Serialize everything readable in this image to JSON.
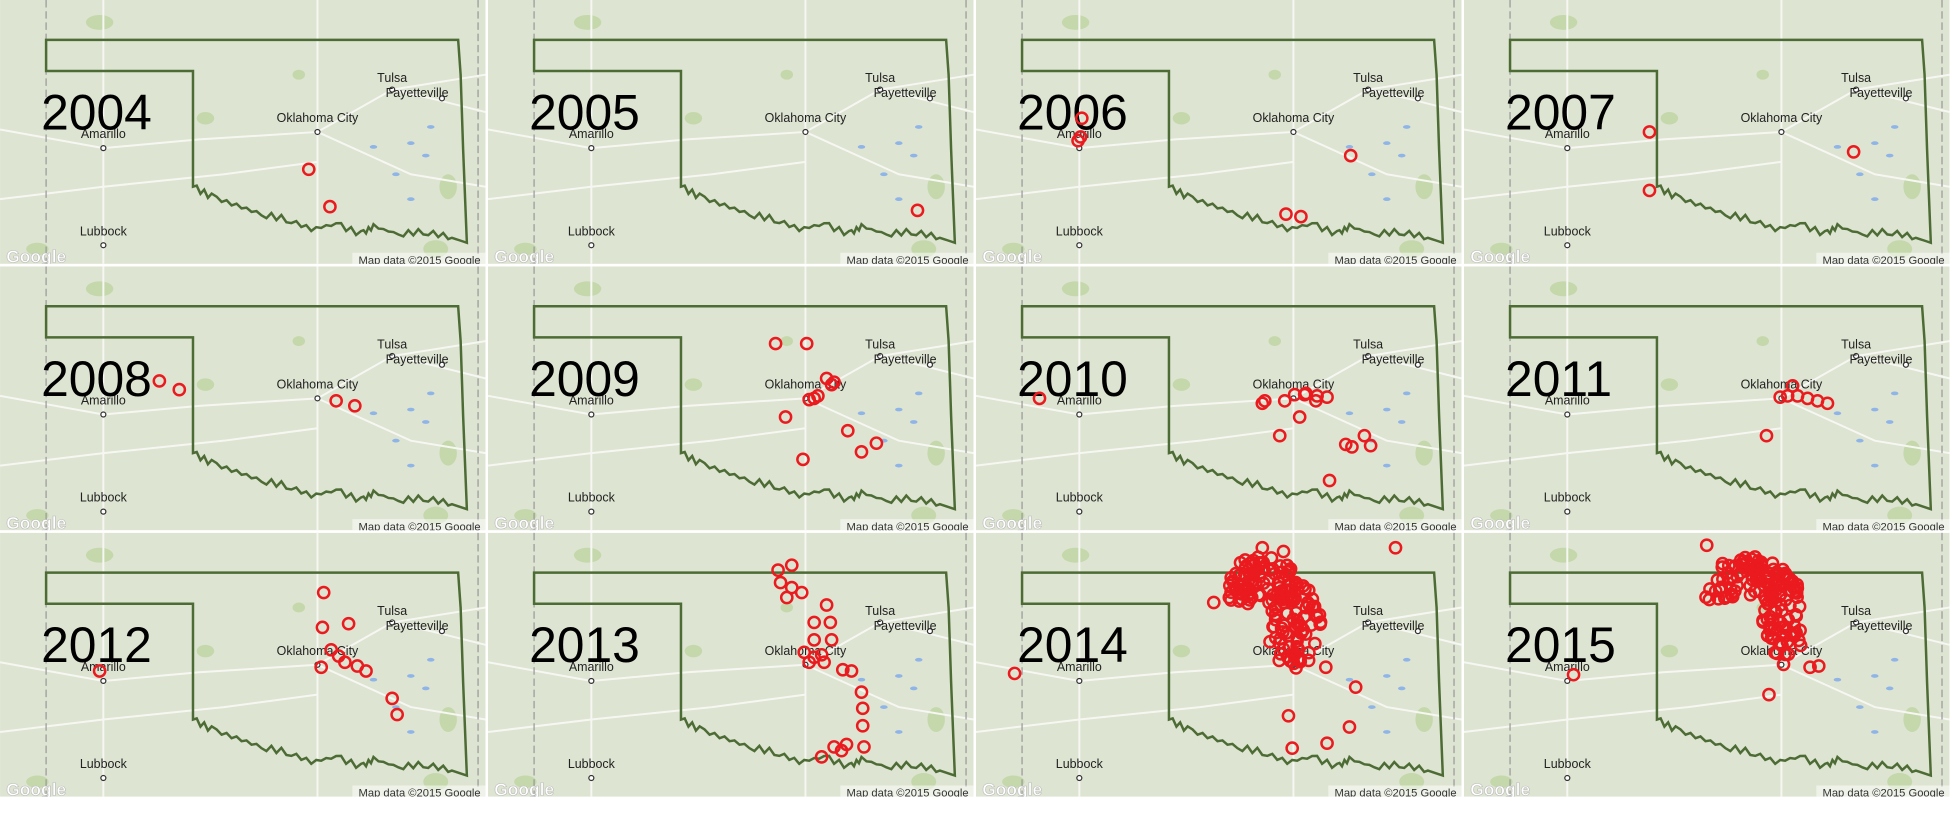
{
  "panels": [
    {
      "year": "2004"
    },
    {
      "year": "2005"
    },
    {
      "year": "2006"
    },
    {
      "year": "2007"
    },
    {
      "year": "2008"
    },
    {
      "year": "2009"
    },
    {
      "year": "2010"
    },
    {
      "year": "2011"
    },
    {
      "year": "2012"
    },
    {
      "year": "2013"
    },
    {
      "year": "2014"
    },
    {
      "year": "2015"
    }
  ],
  "cities": [
    "Tulsa",
    "Fayetteville",
    "Oklahoma City",
    "Amarillo",
    "Lubbock"
  ],
  "logo": "Google",
  "attribution": "Map data ©2015 Google"
}
